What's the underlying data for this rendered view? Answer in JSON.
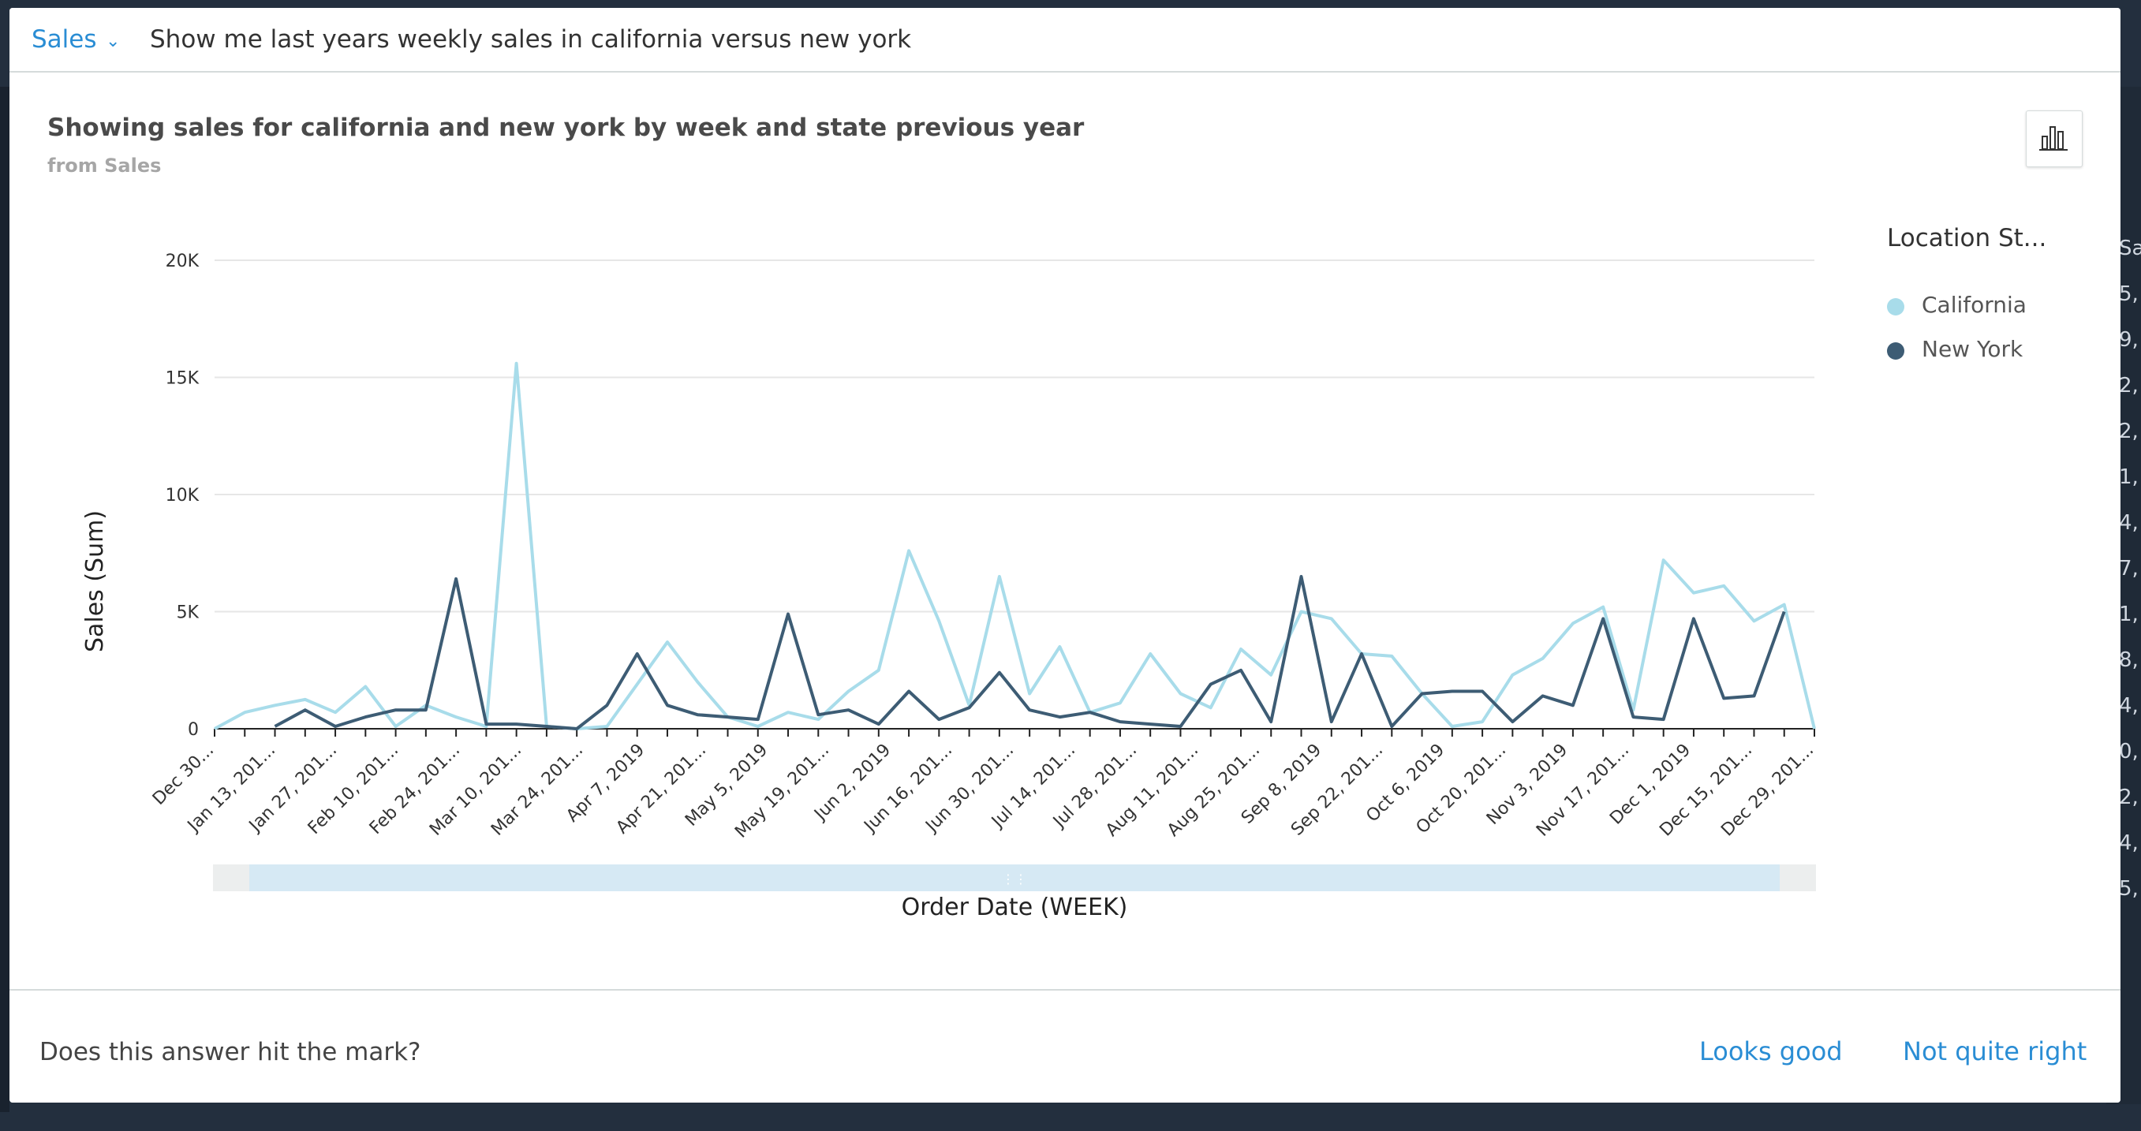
{
  "query_bar": {
    "topic": "Sales",
    "query": "Show me last years weekly sales in california versus new york"
  },
  "answer": {
    "title": "Showing sales for california and new york by week and state previous year",
    "subtitle": "from Sales"
  },
  "background_values": [
    "Sa",
    "5,",
    "9,",
    "2,",
    "2,",
    "1,",
    "4,",
    "7,",
    "1,",
    "8,",
    "4,",
    "0,",
    "2,",
    "4,",
    "5,"
  ],
  "chart_data": {
    "type": "line",
    "xlabel": "Order Date (WEEK)",
    "ylabel": "Sales (Sum)",
    "ylim": [
      0,
      20000
    ],
    "y_ticks": [
      "0",
      "5K",
      "10K",
      "15K",
      "20K"
    ],
    "y_tick_values": [
      0,
      5000,
      10000,
      15000,
      20000
    ],
    "x_tick_labels": [
      "Dec 30...",
      "Jan 13, 201...",
      "Jan 27, 201...",
      "Feb 10, 201...",
      "Feb 24, 201...",
      "Mar 10, 201...",
      "Mar 24, 201...",
      "Apr 7, 2019",
      "Apr 21, 201...",
      "May 5, 2019",
      "May 19, 201...",
      "Jun 2, 2019",
      "Jun 16, 201...",
      "Jun 30, 201...",
      "Jul 14, 201...",
      "Jul 28, 201...",
      "Aug 11, 201...",
      "Aug 25, 201...",
      "Sep 8, 2019",
      "Sep 22, 201...",
      "Oct 6, 2019",
      "Oct 20, 201...",
      "Nov 3, 2019",
      "Nov 17, 201...",
      "Dec 1, 2019",
      "Dec 15, 201...",
      "Dec 29, 201..."
    ],
    "legend_title": "Location St...",
    "legend_position": "right",
    "grid": true,
    "series": [
      {
        "name": "California",
        "color": "#a8dcea",
        "values": [
          0,
          700,
          1000,
          1250,
          700,
          1800,
          100,
          1000,
          500,
          100,
          15600,
          100,
          0,
          100,
          1900,
          3700,
          2000,
          500,
          100,
          700,
          400,
          1600,
          2500,
          7600,
          4600,
          1000,
          6500,
          1500,
          3500,
          700,
          1100,
          3200,
          1500,
          900,
          3400,
          2300,
          5000,
          4700,
          3200,
          3100,
          1500,
          100,
          300,
          2300,
          3000,
          4500,
          5200,
          800,
          7200,
          5800,
          6100,
          4600,
          5300,
          0
        ]
      },
      {
        "name": "New York",
        "color": "#3d5c74",
        "values": [
          null,
          null,
          100,
          800,
          100,
          500,
          800,
          800,
          6400,
          200,
          200,
          100,
          0,
          1000,
          3200,
          1000,
          600,
          500,
          400,
          4900,
          600,
          800,
          200,
          1600,
          400,
          900,
          2400,
          800,
          500,
          700,
          300,
          200,
          100,
          1900,
          2500,
          300,
          6500,
          300,
          3200,
          100,
          1500,
          1600,
          1600,
          300,
          1400,
          1000,
          4700,
          500,
          400,
          4700,
          1300,
          1400,
          5000,
          null
        ]
      }
    ]
  },
  "feedback": {
    "question": "Does this answer hit the mark?",
    "looks_good": "Looks good",
    "not_quite_right": "Not quite right"
  }
}
